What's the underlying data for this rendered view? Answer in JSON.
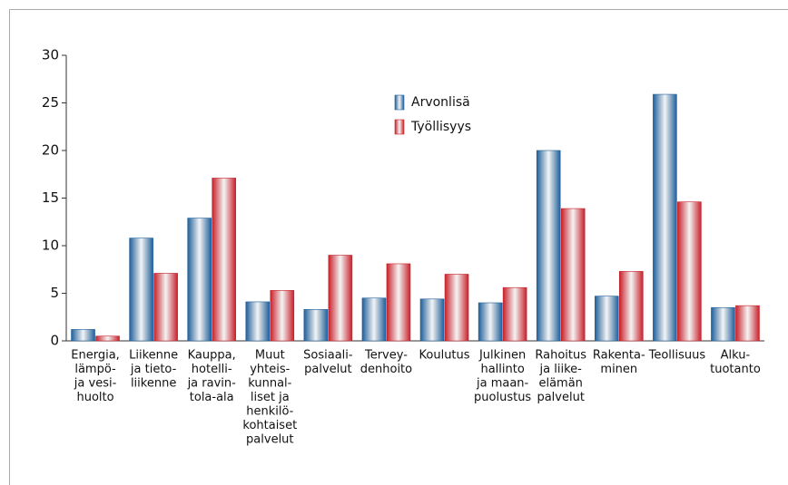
{
  "chart_data": {
    "type": "bar",
    "categories": [
      [
        "Energia,",
        "lämpö-",
        "ja vesi-",
        "huolto"
      ],
      [
        "Liikenne",
        "ja tieto-",
        "liikenne"
      ],
      [
        "Kauppa,",
        "hotelli-",
        "ja ravin-",
        "tola-ala"
      ],
      [
        "Muut",
        "yhteis-",
        "kunnal-",
        "liset ja",
        "henkilö-",
        "kohtaiset",
        "palvelut"
      ],
      [
        "Sosiaali-",
        "palvelut"
      ],
      [
        "Tervey-",
        "denhoito"
      ],
      [
        "Koulutus"
      ],
      [
        "Julkinen",
        "hallinto",
        "ja maan-",
        "puolustus"
      ],
      [
        "Rahoitus",
        "ja liike-",
        "elämän",
        "palvelut"
      ],
      [
        "Rakenta-",
        "minen"
      ],
      [
        "Teollisuus"
      ],
      [
        "Alku-",
        "tuotanto"
      ]
    ],
    "series": [
      {
        "name": "Arvonlisä",
        "color": "#1f5f9a",
        "values": [
          1.2,
          10.8,
          12.9,
          4.1,
          3.3,
          4.5,
          4.4,
          4.0,
          20.0,
          4.7,
          25.9,
          3.5
        ]
      },
      {
        "name": "Työllisyys",
        "color": "#c8202a",
        "values": [
          0.5,
          7.1,
          17.1,
          5.3,
          9.0,
          8.1,
          7.0,
          5.6,
          13.9,
          7.3,
          14.6,
          3.7
        ]
      }
    ],
    "ylim": [
      0,
      30
    ],
    "yticks": [
      0,
      5,
      10,
      15,
      20,
      25,
      30
    ],
    "legend": "top"
  }
}
